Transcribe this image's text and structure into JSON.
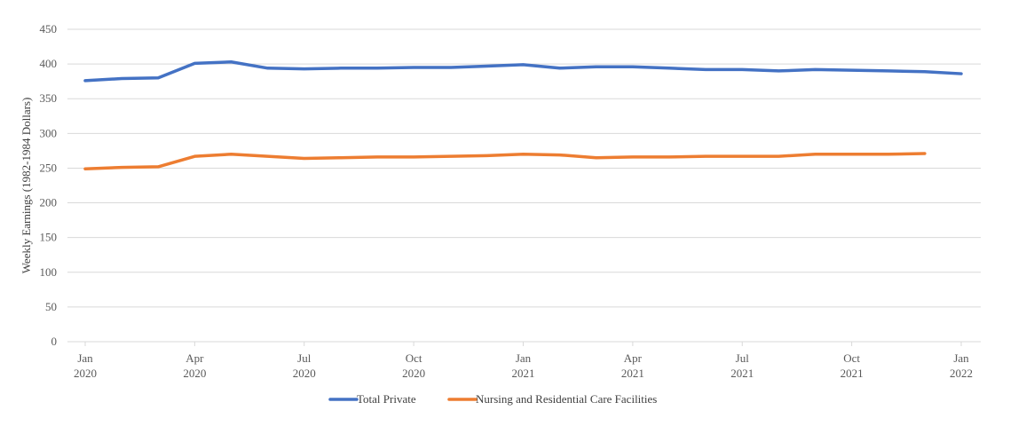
{
  "chart_data": {
    "type": "line",
    "title": "",
    "xlabel": "",
    "ylabel": "Weekly Earnings (1982-1984 Dollars)",
    "ylim": [
      0,
      450
    ],
    "yticks": [
      "0",
      "50",
      "100",
      "150",
      "200",
      "250",
      "300",
      "350",
      "400",
      "450"
    ],
    "grid": true,
    "legend_position": "bottom",
    "x": [
      "2020-01",
      "2020-02",
      "2020-03",
      "2020-04",
      "2020-05",
      "2020-06",
      "2020-07",
      "2020-08",
      "2020-09",
      "2020-10",
      "2020-11",
      "2020-12",
      "2021-01",
      "2021-02",
      "2021-03",
      "2021-04",
      "2021-05",
      "2021-06",
      "2021-07",
      "2021-08",
      "2021-09",
      "2021-10",
      "2021-11",
      "2021-12",
      "2022-01"
    ],
    "xticks": [
      {
        "month": "Jan",
        "year": "2020"
      },
      {
        "month": "Apr",
        "year": "2020"
      },
      {
        "month": "Jul",
        "year": "2020"
      },
      {
        "month": "Oct",
        "year": "2020"
      },
      {
        "month": "Jan",
        "year": "2021"
      },
      {
        "month": "Apr",
        "year": "2021"
      },
      {
        "month": "Jul",
        "year": "2021"
      },
      {
        "month": "Oct",
        "year": "2021"
      },
      {
        "month": "Jan",
        "year": "2022"
      }
    ],
    "series": [
      {
        "name": "Total Private",
        "color": "#4472c4",
        "values": [
          376,
          379,
          380,
          401,
          403,
          394,
          393,
          394,
          394,
          395,
          395,
          397,
          399,
          394,
          396,
          396,
          394,
          392,
          392,
          390,
          392,
          391,
          390,
          389,
          386
        ]
      },
      {
        "name": "Nursing and Residential Care Facilities",
        "color": "#ed7d31",
        "values": [
          249,
          251,
          252,
          267,
          270,
          267,
          264,
          265,
          266,
          266,
          267,
          268,
          270,
          269,
          265,
          266,
          266,
          267,
          267,
          267,
          270,
          270,
          270,
          271,
          null
        ]
      }
    ]
  }
}
